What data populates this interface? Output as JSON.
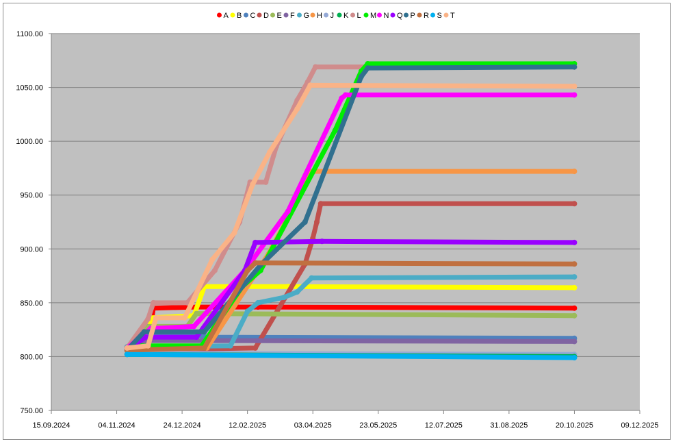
{
  "chart_data": {
    "type": "line",
    "title": "",
    "xlabel": "",
    "ylabel": "",
    "x_axis": {
      "type": "date",
      "range": [
        "2024-09-15",
        "2025-12-09"
      ],
      "tick_labels": [
        "15.09.2024",
        "04.11.2024",
        "24.12.2024",
        "12.02.2025",
        "03.04.2025",
        "23.05.2025",
        "12.07.2025",
        "31.08.2025",
        "20.10.2025",
        "09.12.2025"
      ],
      "tick_dates": [
        "2024-09-15",
        "2024-11-04",
        "2024-12-24",
        "2025-02-12",
        "2025-04-03",
        "2025-05-23",
        "2025-07-12",
        "2025-08-31",
        "2025-10-20",
        "2025-12-09"
      ]
    },
    "y_axis": {
      "range": [
        750,
        1100
      ],
      "tick_labels": [
        "750.00",
        "800.00",
        "850.00",
        "900.00",
        "950.00",
        "1000.00",
        "1050.00",
        "1100.00"
      ],
      "tick_values": [
        750,
        800,
        850,
        900,
        950,
        1000,
        1050,
        1100
      ]
    },
    "grid": "horizontal",
    "legend_position": "top",
    "plot_background": "#c0c0c0",
    "series": [
      {
        "name": "A",
        "color": "#ff0000",
        "points": [
          [
            "2024-11-12",
            809
          ],
          [
            "2024-11-28",
            810
          ],
          [
            "2024-12-02",
            845
          ],
          [
            "2025-01-04",
            846
          ],
          [
            "2025-02-20",
            846
          ],
          [
            "2025-10-20",
            845
          ]
        ]
      },
      {
        "name": "B",
        "color": "#ffff00",
        "points": [
          [
            "2024-11-12",
            806
          ],
          [
            "2024-11-28",
            808
          ],
          [
            "2024-11-30",
            836
          ],
          [
            "2025-01-02",
            838
          ],
          [
            "2025-01-10",
            865
          ],
          [
            "2025-03-15",
            865
          ],
          [
            "2025-10-20",
            864
          ]
        ]
      },
      {
        "name": "C",
        "color": "#4f81bd",
        "points": [
          [
            "2024-11-12",
            808
          ],
          [
            "2024-11-25",
            820
          ],
          [
            "2025-01-05",
            820
          ],
          [
            "2025-01-12",
            818
          ],
          [
            "2025-10-20",
            817
          ]
        ]
      },
      {
        "name": "D",
        "color": "#c0504d",
        "points": [
          [
            "2024-11-12",
            806
          ],
          [
            "2025-02-18",
            808
          ],
          [
            "2025-03-28",
            886
          ],
          [
            "2025-04-03",
            910
          ],
          [
            "2025-04-06",
            925
          ],
          [
            "2025-04-09",
            942
          ],
          [
            "2025-10-20",
            942
          ]
        ]
      },
      {
        "name": "E",
        "color": "#9bbb59",
        "points": [
          [
            "2024-11-12",
            805
          ],
          [
            "2024-11-26",
            828
          ],
          [
            "2024-12-28",
            828
          ],
          [
            "2025-01-04",
            840
          ],
          [
            "2025-10-20",
            838
          ]
        ]
      },
      {
        "name": "F",
        "color": "#8064a2",
        "points": [
          [
            "2024-11-12",
            806
          ],
          [
            "2024-11-28",
            815
          ],
          [
            "2025-10-20",
            814
          ]
        ]
      },
      {
        "name": "G",
        "color": "#4bacc6",
        "points": [
          [
            "2024-11-12",
            809
          ],
          [
            "2025-01-30",
            810
          ],
          [
            "2025-02-12",
            842
          ],
          [
            "2025-02-20",
            850
          ],
          [
            "2025-03-12",
            855
          ],
          [
            "2025-03-22",
            860
          ],
          [
            "2025-04-02",
            873
          ],
          [
            "2025-10-20",
            874
          ]
        ]
      },
      {
        "name": "H",
        "color": "#f79646",
        "points": [
          [
            "2024-11-12",
            806
          ],
          [
            "2025-01-12",
            808
          ],
          [
            "2025-02-28",
            895
          ],
          [
            "2025-03-25",
            952
          ],
          [
            "2025-04-01",
            972
          ],
          [
            "2025-10-20",
            972
          ]
        ]
      },
      {
        "name": "J",
        "color": "#95a9d6",
        "points": [
          [
            "2024-11-12",
            803
          ],
          [
            "2025-10-20",
            802
          ]
        ]
      },
      {
        "name": "K",
        "color": "#00b050",
        "points": [
          [
            "2024-11-12",
            802
          ],
          [
            "2025-10-20",
            800
          ]
        ]
      },
      {
        "name": "L",
        "color": "#d08c8c",
        "points": [
          [
            "2024-11-12",
            808
          ],
          [
            "2024-11-28",
            835
          ],
          [
            "2024-12-02",
            850
          ],
          [
            "2024-12-28",
            850
          ],
          [
            "2025-01-18",
            880
          ],
          [
            "2025-02-06",
            925
          ],
          [
            "2025-02-14",
            962
          ],
          [
            "2025-02-26",
            962
          ],
          [
            "2025-03-06",
            995
          ],
          [
            "2025-03-22",
            1038
          ],
          [
            "2025-03-30",
            1055
          ],
          [
            "2025-04-05",
            1069
          ],
          [
            "2025-10-20",
            1069
          ]
        ]
      },
      {
        "name": "M",
        "color": "#00ee00",
        "points": [
          [
            "2024-11-12",
            806
          ],
          [
            "2024-11-22",
            810
          ],
          [
            "2025-01-08",
            810
          ],
          [
            "2025-02-08",
            865
          ],
          [
            "2025-02-22",
            880
          ],
          [
            "2025-04-20",
            1010
          ],
          [
            "2025-05-10",
            1065
          ],
          [
            "2025-05-15",
            1072
          ],
          [
            "2025-10-20",
            1072
          ]
        ]
      },
      {
        "name": "N",
        "color": "#ff00ff",
        "points": [
          [
            "2024-11-12",
            808
          ],
          [
            "2024-11-30",
            826
          ],
          [
            "2025-01-02",
            828
          ],
          [
            "2025-02-10",
            880
          ],
          [
            "2025-03-15",
            935
          ],
          [
            "2025-04-25",
            1040
          ],
          [
            "2025-04-28",
            1043
          ],
          [
            "2025-10-20",
            1043
          ]
        ]
      },
      {
        "name": "Q",
        "color": "#9900ff",
        "points": [
          [
            "2024-11-12",
            806
          ],
          [
            "2024-11-26",
            818
          ],
          [
            "2025-01-04",
            818
          ],
          [
            "2025-02-10",
            880
          ],
          [
            "2025-02-18",
            906
          ],
          [
            "2025-04-10",
            907
          ],
          [
            "2025-10-20",
            906
          ]
        ]
      },
      {
        "name": "P",
        "color": "#31708f",
        "points": [
          [
            "2024-11-12",
            806
          ],
          [
            "2024-11-25",
            823
          ],
          [
            "2025-01-10",
            823
          ],
          [
            "2025-02-22",
            885
          ],
          [
            "2025-03-28",
            925
          ],
          [
            "2025-05-10",
            1060
          ],
          [
            "2025-05-15",
            1068
          ],
          [
            "2025-10-20",
            1069
          ]
        ]
      },
      {
        "name": "R",
        "color": "#c07040",
        "points": [
          [
            "2024-11-12",
            806
          ],
          [
            "2025-01-10",
            808
          ],
          [
            "2025-02-12",
            880
          ],
          [
            "2025-02-18",
            887
          ],
          [
            "2025-10-20",
            886
          ]
        ]
      },
      {
        "name": "S",
        "color": "#00b0f0",
        "points": [
          [
            "2024-11-12",
            802
          ],
          [
            "2025-10-20",
            799
          ]
        ]
      },
      {
        "name": "T",
        "color": "#fab387",
        "points": [
          [
            "2024-11-12",
            808
          ],
          [
            "2024-11-28",
            810
          ],
          [
            "2024-12-04",
            836
          ],
          [
            "2024-12-26",
            836
          ],
          [
            "2025-01-16",
            890
          ],
          [
            "2025-02-02",
            915
          ],
          [
            "2025-02-16",
            960
          ],
          [
            "2025-03-01",
            990
          ],
          [
            "2025-03-22",
            1030
          ],
          [
            "2025-04-01",
            1052
          ],
          [
            "2025-10-20",
            1051
          ]
        ]
      }
    ]
  }
}
